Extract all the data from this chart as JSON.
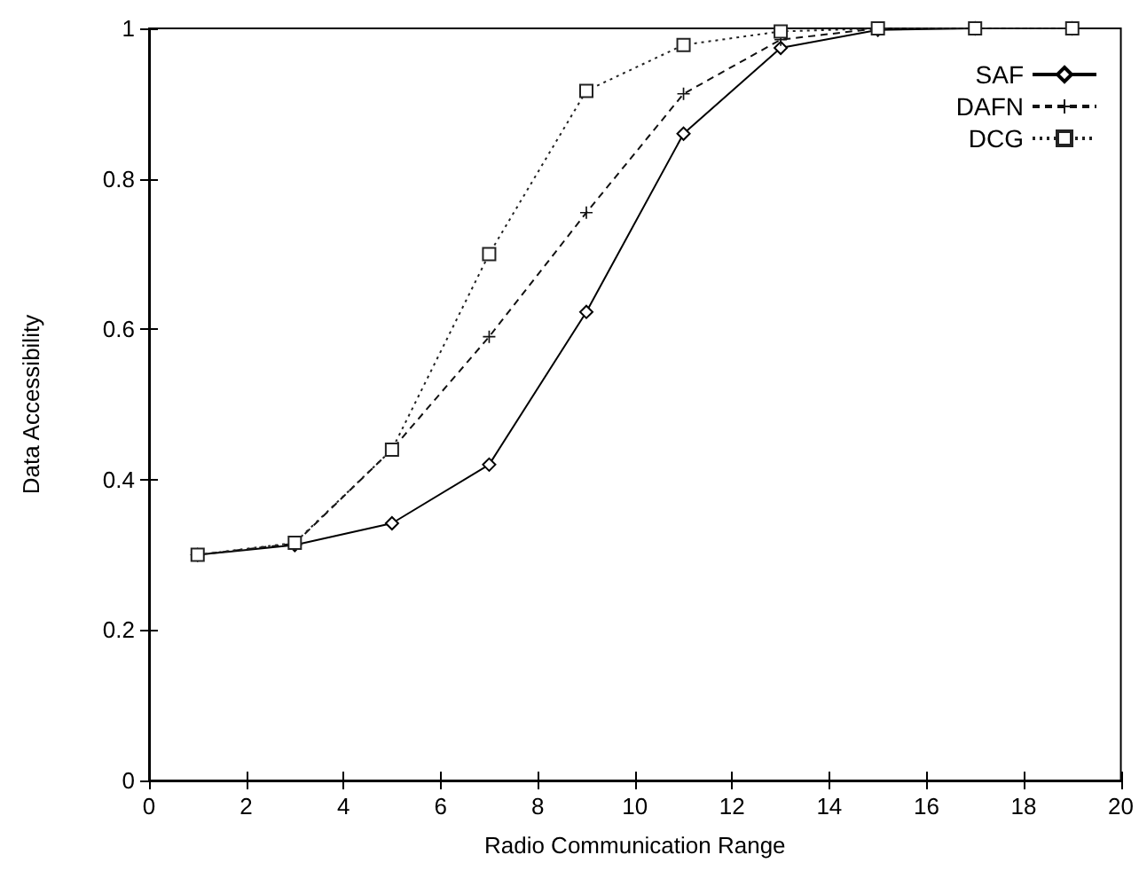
{
  "chart_data": {
    "type": "line",
    "xlabel": "Radio Communication Range",
    "ylabel": "Data Accessibility",
    "x": [
      1,
      3,
      5,
      7,
      9,
      11,
      13,
      15,
      17,
      19
    ],
    "series": [
      {
        "name": "SAF",
        "color": "#000000",
        "marker": "diamond",
        "line_style": "solid",
        "values": [
          0.3,
          0.313,
          0.342,
          0.42,
          0.623,
          0.86,
          0.974,
          0.998,
          1,
          1
        ]
      },
      {
        "name": "DAFN",
        "color": "#111111",
        "marker": "cross",
        "line_style": "dashed",
        "values": [
          0.3,
          0.315,
          0.44,
          0.59,
          0.755,
          0.913,
          0.985,
          1,
          1,
          1
        ]
      },
      {
        "name": "DCG",
        "color": "#222222",
        "marker": "square",
        "line_style": "dotted",
        "values": [
          0.3,
          0.316,
          0.44,
          0.7,
          0.917,
          0.978,
          0.996,
          1,
          1,
          1
        ]
      }
    ],
    "xlim": [
      0,
      20
    ],
    "xticks": [
      0,
      2,
      4,
      6,
      8,
      10,
      12,
      14,
      16,
      18,
      20
    ],
    "ylim": [
      0,
      1
    ],
    "yticks": [
      0,
      0.2,
      0.4,
      0.6,
      0.8,
      1
    ],
    "grid": false,
    "legend": "top right"
  }
}
